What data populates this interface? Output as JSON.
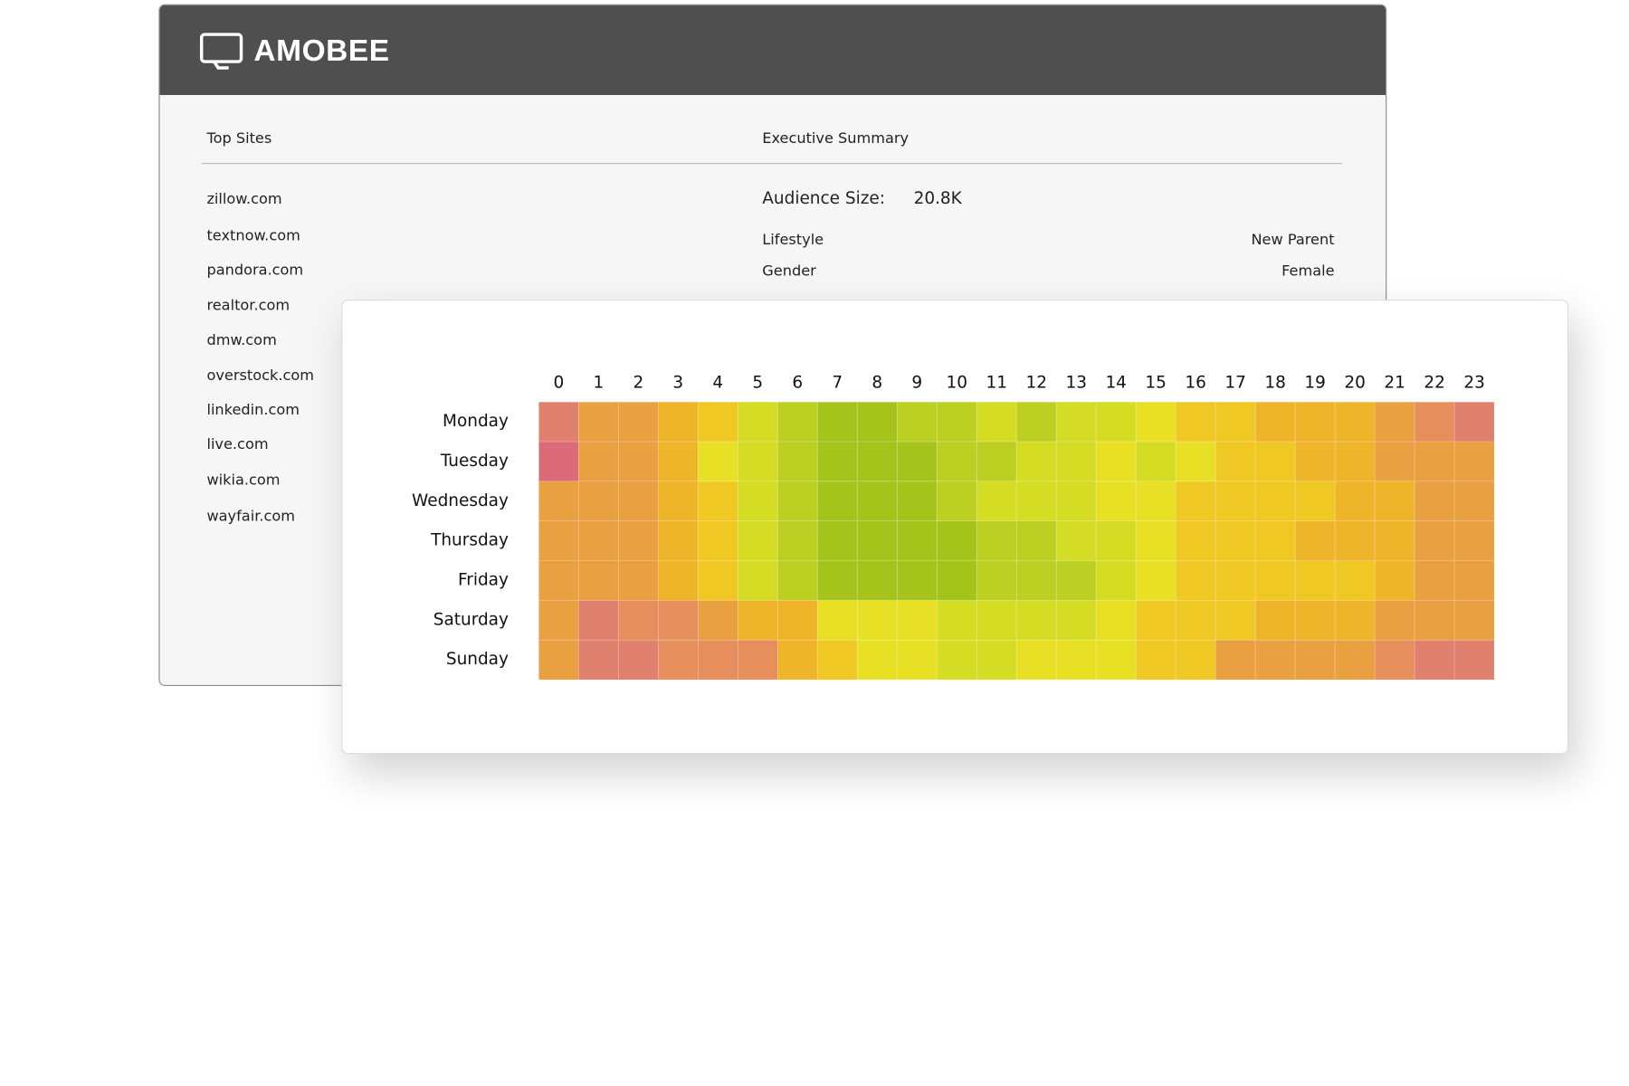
{
  "brand": "AMOBEE",
  "top_sites": {
    "title": "Top Sites",
    "sites": [
      "zillow.com",
      "textnow.com",
      "pandora.com",
      "realtor.com",
      "dmw.com",
      "overstock.com",
      "linkedin.com",
      "live.com",
      "wikia.com",
      "wayfair.com"
    ]
  },
  "executive_summary": {
    "title": "Executive Summary",
    "audience_label": "Audience Size:",
    "audience_value": "20.8K",
    "rows": [
      {
        "label": "Lifestyle",
        "value": "New Parent"
      },
      {
        "label": "Gender",
        "value": "Female"
      }
    ]
  },
  "chart_data": {
    "type": "heatmap",
    "categories": [
      0,
      1,
      2,
      3,
      4,
      5,
      6,
      7,
      8,
      9,
      10,
      11,
      12,
      13,
      14,
      15,
      16,
      17,
      18,
      19,
      20,
      21,
      22,
      23
    ],
    "rows": [
      "Monday",
      "Tuesday",
      "Wednesday",
      "Thursday",
      "Friday",
      "Saturday",
      "Sunday"
    ],
    "colorscale": [
      "#dc6b7a",
      "#e0806e",
      "#e68f5c",
      "#e8a040",
      "#efb52a",
      "#f0c824",
      "#e8e024",
      "#d4dc24",
      "#bcd024",
      "#a4c41c"
    ],
    "values": [
      [
        1,
        3,
        3,
        4,
        5,
        7,
        8,
        9,
        9,
        8,
        8,
        7,
        8,
        7,
        7,
        6,
        5,
        5,
        4,
        4,
        4,
        3,
        2,
        1
      ],
      [
        0,
        3,
        3,
        4,
        6,
        7,
        8,
        9,
        9,
        9,
        8,
        8,
        7,
        7,
        6,
        7,
        6,
        5,
        5,
        4,
        4,
        3,
        3,
        3
      ],
      [
        3,
        3,
        3,
        4,
        5,
        7,
        8,
        9,
        9,
        9,
        8,
        7,
        7,
        7,
        6,
        6,
        5,
        5,
        5,
        5,
        4,
        4,
        3,
        3
      ],
      [
        3,
        3,
        3,
        4,
        5,
        7,
        8,
        9,
        9,
        9,
        9,
        8,
        8,
        7,
        7,
        6,
        5,
        5,
        5,
        4,
        4,
        4,
        3,
        3
      ],
      [
        3,
        3,
        3,
        4,
        5,
        7,
        8,
        9,
        9,
        9,
        9,
        8,
        8,
        8,
        7,
        6,
        5,
        5,
        5,
        5,
        5,
        4,
        3,
        3
      ],
      [
        3,
        1,
        2,
        2,
        3,
        4,
        4,
        6,
        6,
        6,
        7,
        7,
        7,
        7,
        6,
        5,
        5,
        5,
        4,
        4,
        4,
        3,
        3,
        3
      ],
      [
        3,
        1,
        1,
        2,
        2,
        2,
        4,
        5,
        6,
        6,
        7,
        7,
        6,
        6,
        6,
        5,
        5,
        3,
        3,
        3,
        3,
        2,
        1,
        1
      ]
    ]
  }
}
